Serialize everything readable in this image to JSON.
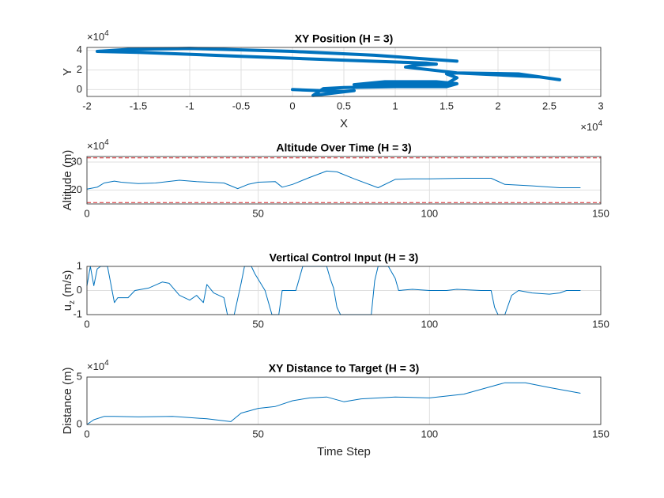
{
  "chart_data": [
    {
      "type": "line",
      "title": "XY Position (H = 3)",
      "xlabel": "X",
      "ylabel": {
        "text": "Y"
      },
      "x_multiplier": {
        "base": "×10",
        "exponent": "4"
      },
      "y_multiplier": {
        "base": "×10",
        "exponent": "4"
      },
      "x": [
        0,
        5000,
        6000,
        2000,
        3000,
        5000,
        10000,
        15000,
        16000,
        14000,
        9000,
        6000,
        9000,
        15000,
        16000,
        15000,
        16000,
        22000,
        26000,
        24000,
        16000,
        11000,
        12000,
        14000,
        13000,
        5000,
        -5000,
        -15000,
        -19000,
        -16000,
        -10000,
        0,
        8000,
        16000
      ],
      "series": [
        {
          "color": "#0072bd",
          "width": 4,
          "values": [
            0,
            -2000,
            -1000,
            -6000,
            1000,
            2000,
            3000,
            3000,
            6000,
            8000,
            8000,
            5000,
            5000,
            6000,
            12000,
            16000,
            17000,
            16000,
            10000,
            13000,
            17000,
            23000,
            25000,
            26000,
            27000,
            30000,
            34000,
            38000,
            39000,
            41000,
            42000,
            39000,
            35000,
            29000
          ]
        }
      ],
      "xlim": [
        -20000,
        30000
      ],
      "xticks": [
        {
          "value": -20000,
          "label": "-2"
        },
        {
          "value": -15000,
          "label": "-1.5"
        },
        {
          "value": -10000,
          "label": "-1"
        },
        {
          "value": -5000,
          "label": "-0.5"
        },
        0,
        {
          "value": 5000,
          "label": "0.5"
        },
        {
          "value": 10000,
          "label": "1"
        },
        {
          "value": 15000,
          "label": "1.5"
        },
        {
          "value": 20000,
          "label": "2"
        },
        {
          "value": 25000,
          "label": "2.5"
        },
        {
          "value": 30000,
          "label": "3"
        }
      ],
      "ylim": [
        -7000,
        43000
      ],
      "yticks": [
        0,
        {
          "value": 20000,
          "label": "2"
        },
        {
          "value": 40000,
          "label": "4"
        }
      ],
      "grid": true
    },
    {
      "type": "line",
      "title": "Altitude Over Time (H = 3)",
      "ylabel": {
        "text": "Altitude (m)"
      },
      "y_multiplier": {
        "base": "×10",
        "exponent": "4"
      },
      "x": [
        0,
        3,
        5,
        8,
        10,
        15,
        20,
        27,
        32,
        40,
        44,
        47,
        50,
        55,
        57,
        60,
        65,
        70,
        73,
        78,
        85,
        90,
        95,
        100,
        110,
        118,
        122,
        130,
        138,
        144
      ],
      "series": [
        {
          "color": "#0072bd",
          "width": 1,
          "values": [
            203000,
            210000,
            225000,
            232000,
            228000,
            223000,
            225000,
            235000,
            230000,
            225000,
            205000,
            220000,
            228000,
            230000,
            210000,
            220000,
            245000,
            268000,
            265000,
            240000,
            208000,
            238000,
            240000,
            240000,
            242000,
            242000,
            220000,
            215000,
            208000,
            208000
          ]
        }
      ],
      "hlines": [
        {
          "value": 315000,
          "color": "#d62728",
          "style": "dashed"
        },
        {
          "value": 155000,
          "color": "#d62728",
          "style": "dashed"
        }
      ],
      "xlim": [
        0,
        150
      ],
      "xticks": [
        0,
        50,
        100,
        150
      ],
      "ylim": [
        150000,
        320000
      ],
      "yticks": [
        {
          "value": 200000,
          "label": "20"
        },
        {
          "value": 300000,
          "label": "30"
        }
      ],
      "grid": true
    },
    {
      "type": "line",
      "title": "Vertical Control Input (H = 3)",
      "ylabel": {
        "text": "u",
        "sub": "z",
        "rest": " (m/s)"
      },
      "x": [
        0,
        1,
        2,
        3,
        4,
        6,
        8,
        9,
        12,
        14,
        18,
        22,
        24,
        27,
        30,
        32,
        34,
        35,
        37,
        40,
        41,
        43,
        45,
        46,
        48,
        49,
        52,
        53,
        54,
        56,
        57,
        60,
        61,
        63,
        70,
        71,
        72,
        73,
        74,
        83,
        84,
        85,
        88,
        90,
        91,
        95,
        100,
        105,
        108,
        115,
        118,
        119,
        120,
        122,
        124,
        126,
        130,
        135,
        138,
        140,
        144
      ],
      "series": [
        {
          "color": "#0072bd",
          "width": 1,
          "values": [
            0.2,
            1,
            0.2,
            0.9,
            1,
            1,
            -0.5,
            -0.3,
            -0.3,
            0,
            0.1,
            0.35,
            0.3,
            -0.2,
            -0.4,
            -0.2,
            -0.5,
            0.25,
            -0.1,
            -0.3,
            -1,
            -1,
            0.3,
            1,
            1,
            0.7,
            0,
            -0.5,
            -1,
            -1,
            0,
            0,
            0,
            1,
            1,
            0.5,
            0.1,
            -0.7,
            -1,
            -1,
            0.4,
            1,
            1,
            0.5,
            0,
            0.05,
            0,
            0,
            0.05,
            0,
            0,
            -0.7,
            -1,
            -1,
            -0.2,
            0,
            -0.1,
            -0.15,
            -0.1,
            0,
            0
          ]
        }
      ],
      "xlim": [
        0,
        150
      ],
      "xticks": [
        0,
        50,
        100,
        150
      ],
      "ylim": [
        -1,
        1
      ],
      "yticks": [
        -1,
        0,
        1
      ],
      "grid": true
    },
    {
      "type": "line",
      "title": "XY Distance to Target (H = 3)",
      "xlabel": "Time Step",
      "ylabel": {
        "text": "Distance (m)"
      },
      "y_multiplier": {
        "base": "×10",
        "exponent": "4"
      },
      "x": [
        0,
        2,
        5,
        8,
        15,
        25,
        35,
        42,
        45,
        50,
        55,
        60,
        65,
        70,
        73,
        75,
        80,
        90,
        100,
        110,
        118,
        122,
        128,
        135,
        144
      ],
      "series": [
        {
          "color": "#0072bd",
          "width": 1,
          "values": [
            0,
            5000,
            8500,
            8500,
            8000,
            8500,
            6000,
            3000,
            12000,
            17000,
            19000,
            25000,
            28000,
            29000,
            26000,
            24000,
            27000,
            29000,
            28000,
            32000,
            40000,
            44000,
            44000,
            39000,
            33000
          ]
        }
      ],
      "xlim": [
        0,
        150
      ],
      "xticks": [
        0,
        50,
        100,
        150
      ],
      "ylim": [
        0,
        50000
      ],
      "yticks": [
        0,
        {
          "value": 50000,
          "label": "5"
        }
      ],
      "grid": true
    }
  ]
}
